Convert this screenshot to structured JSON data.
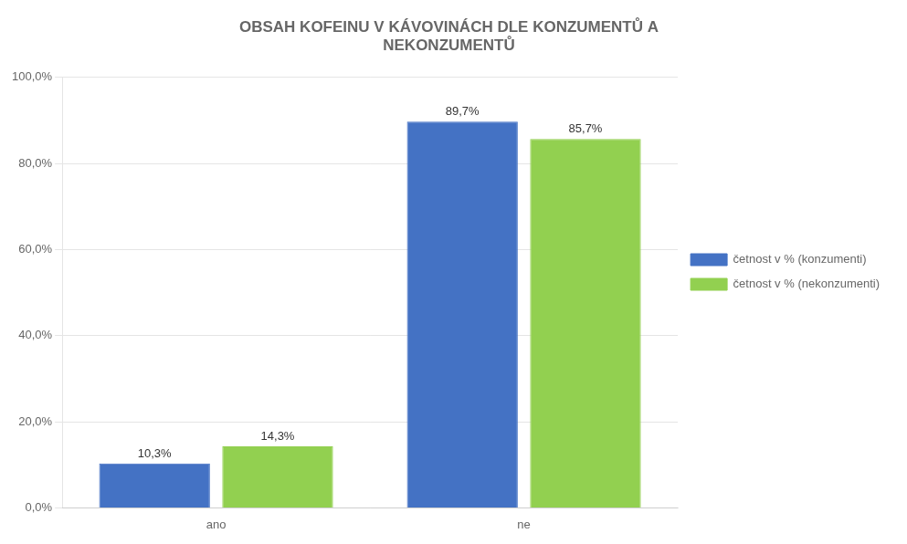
{
  "chart_data": {
    "type": "bar",
    "title": "OBSAH KOFEINU V KÁVOVINÁCH DLE KONZUMENTŮ A\nNEKONZUMENTŮ",
    "categories": [
      "ano",
      "ne"
    ],
    "series": [
      {
        "name": "četnost v % (konzumenti)",
        "color": "#4472C4",
        "values": [
          10.3,
          89.7
        ],
        "value_labels": [
          "10,3%",
          "89,7%"
        ]
      },
      {
        "name": "četnost v % (nekonzumenti)",
        "color": "#92D050",
        "values": [
          14.3,
          85.7
        ],
        "value_labels": [
          "14,3%",
          "85,7%"
        ]
      }
    ],
    "ylim": [
      0,
      100
    ],
    "yticks": [
      {
        "value": 0,
        "label": "0,0%"
      },
      {
        "value": 20,
        "label": "20,0%"
      },
      {
        "value": 40,
        "label": "40,0%"
      },
      {
        "value": 60,
        "label": "60,0%"
      },
      {
        "value": 80,
        "label": "80,0%"
      },
      {
        "value": 100,
        "label": "100,0%"
      }
    ],
    "grid": true,
    "legend": "right",
    "data_labels": true
  }
}
